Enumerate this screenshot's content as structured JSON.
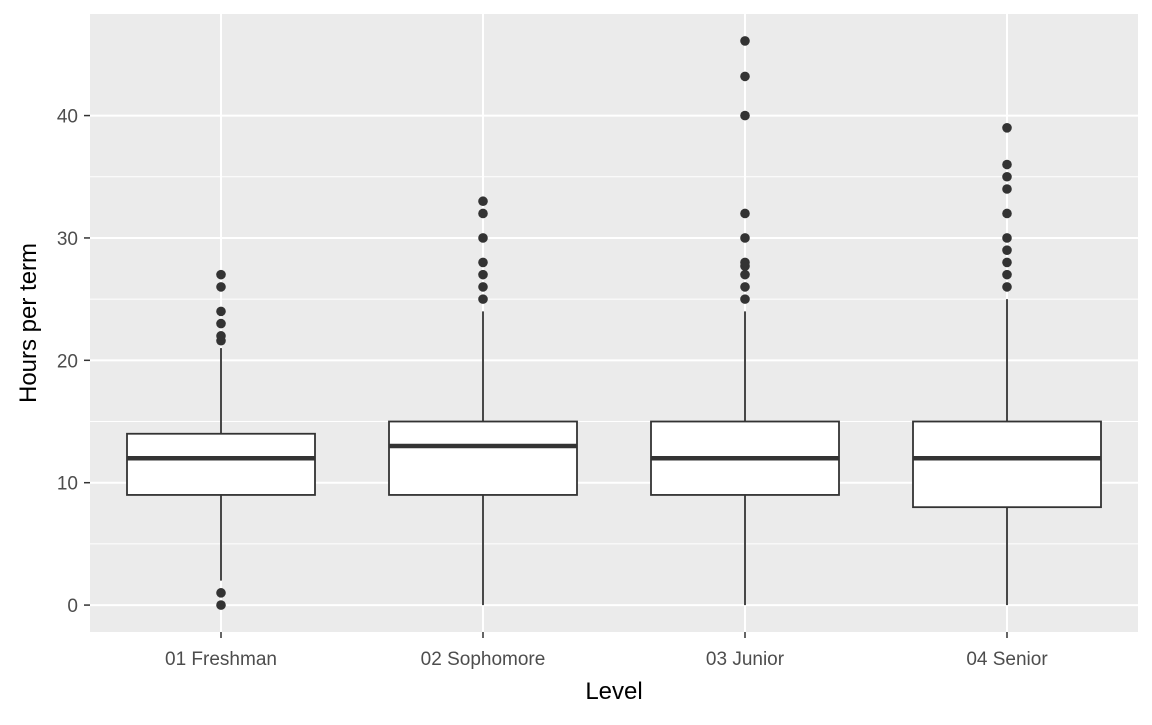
{
  "chart_data": {
    "type": "boxplot",
    "xlabel": "Level",
    "ylabel": "Hours per term",
    "ylim": [
      -2.2,
      48.3
    ],
    "yticks": [
      0,
      10,
      20,
      30,
      40
    ],
    "grid": true,
    "colors": {
      "panel": "#ebebeb",
      "grid": "#ffffff",
      "box_fill": "#ffffff",
      "stroke": "#333333",
      "tick_text": "#4d4d4d"
    },
    "categories": [
      "01 Freshman",
      "02 Sophomore",
      "03 Junior",
      "04 Senior"
    ],
    "boxes": [
      {
        "category": "01 Freshman",
        "whisker_low": 2,
        "q1": 9,
        "median": 12,
        "q3": 14,
        "whisker_high": 21,
        "outliers": [
          0,
          1,
          21.6,
          22,
          23,
          24,
          26,
          27
        ]
      },
      {
        "category": "02 Sophomore",
        "whisker_low": 0,
        "q1": 9,
        "median": 13,
        "q3": 15,
        "whisker_high": 24,
        "outliers": [
          25,
          26,
          27,
          28,
          30,
          32,
          33
        ]
      },
      {
        "category": "03 Junior",
        "whisker_low": 0,
        "q1": 9,
        "median": 12,
        "q3": 15,
        "whisker_high": 24,
        "outliers": [
          25,
          26,
          27,
          27.7,
          28,
          30,
          32,
          40,
          43.2,
          46.1
        ]
      },
      {
        "category": "04 Senior",
        "whisker_low": 0,
        "q1": 8,
        "median": 12,
        "q3": 15,
        "whisker_high": 25,
        "outliers": [
          26,
          27,
          28,
          29,
          30,
          32,
          34,
          35,
          36,
          39
        ]
      }
    ]
  }
}
